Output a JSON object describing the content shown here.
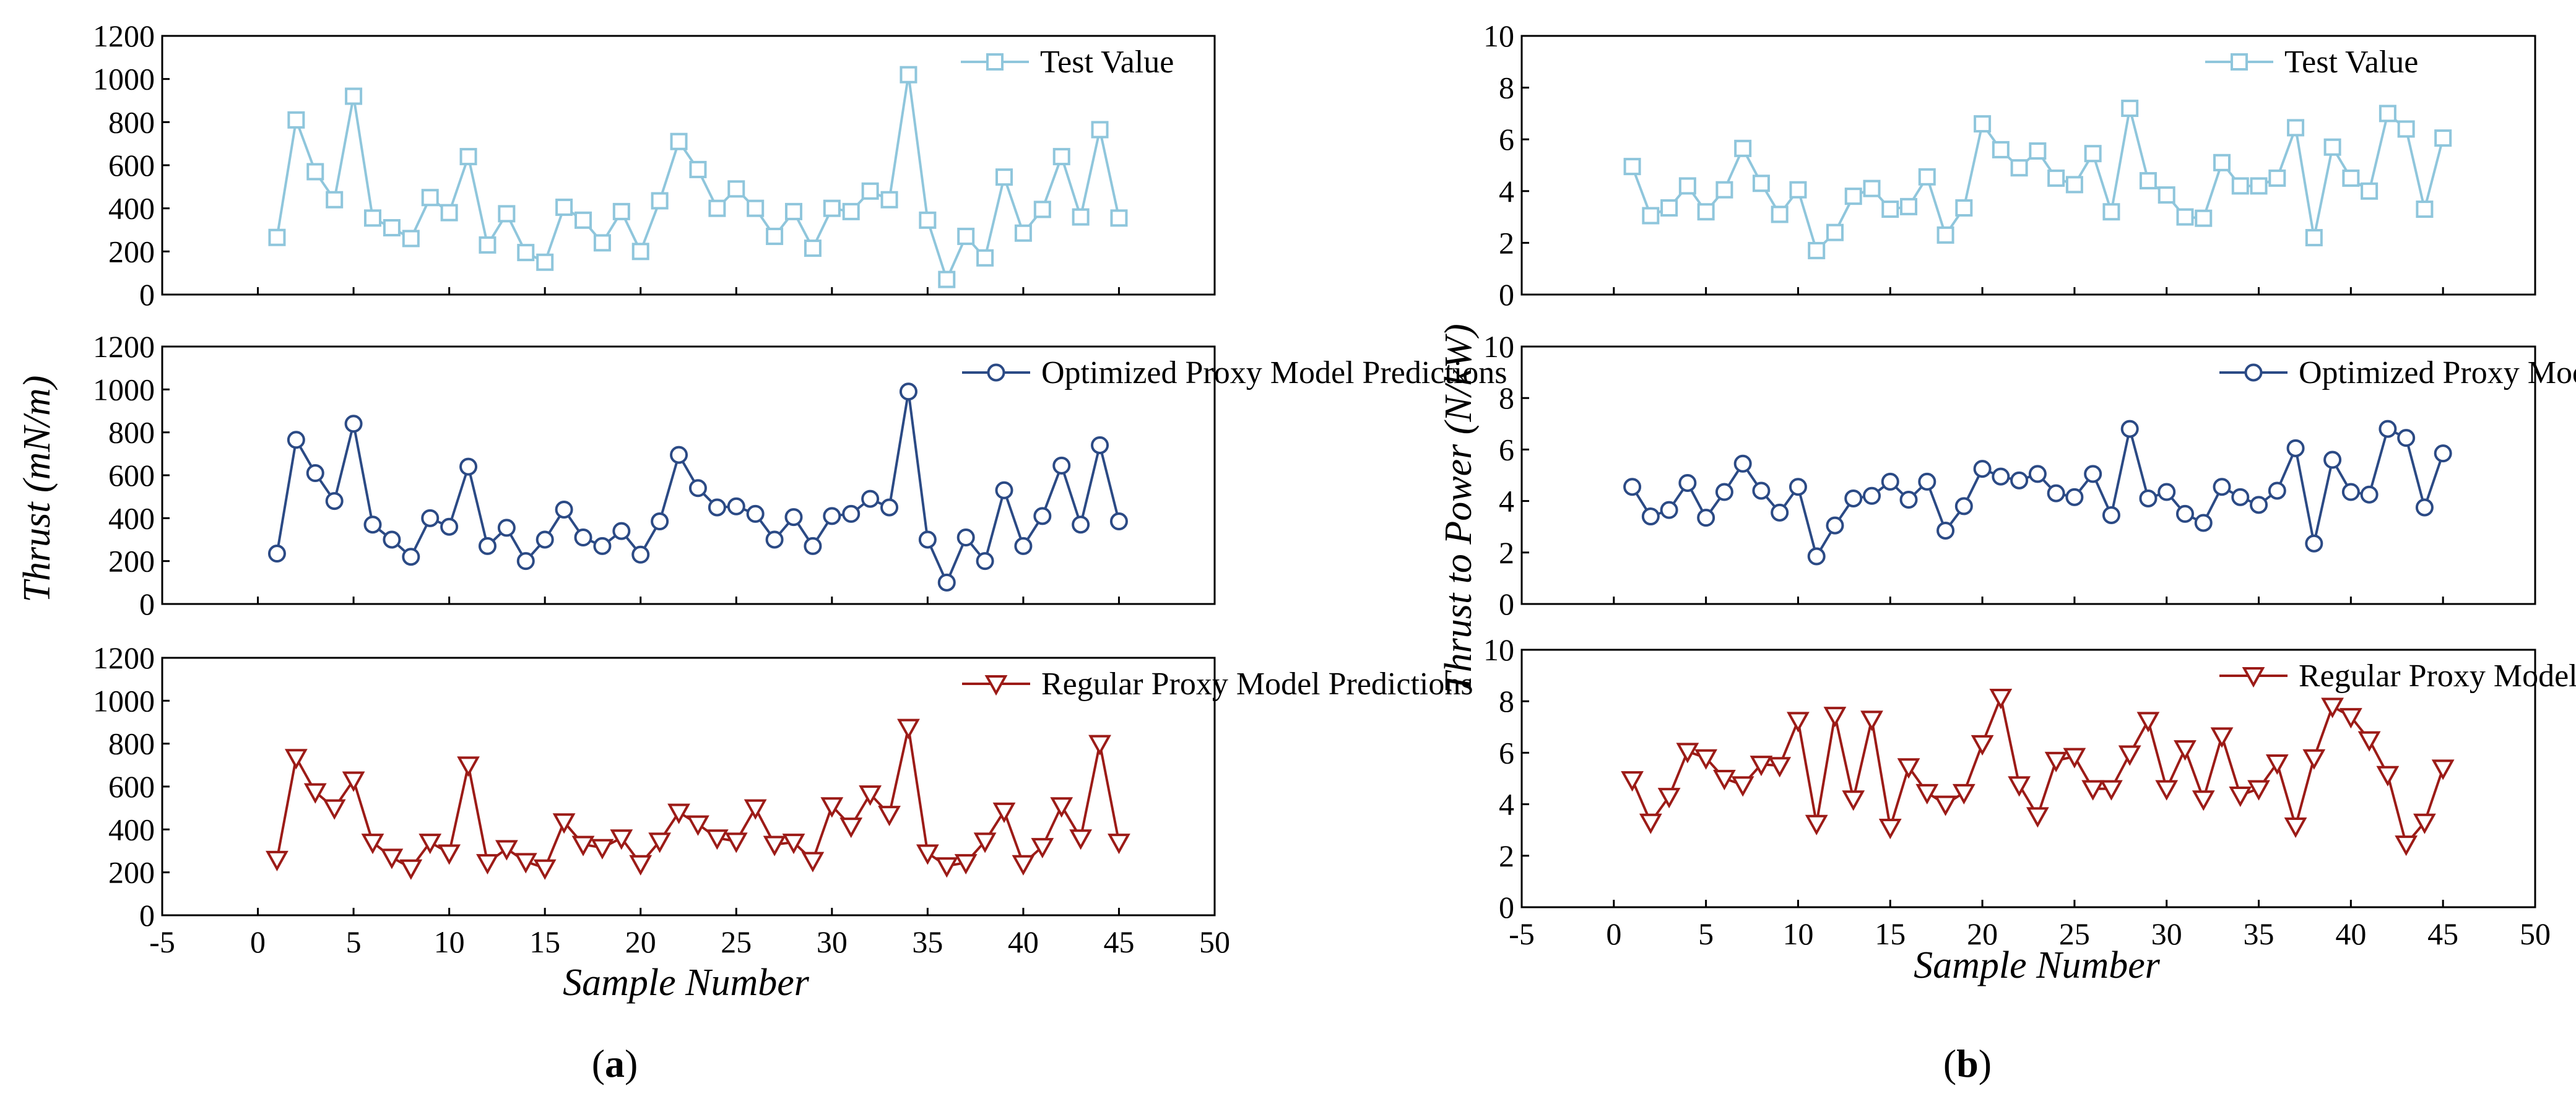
{
  "chart_data": [
    {
      "id": "a",
      "type": "line",
      "caption": {
        "open": "(",
        "letter": "a",
        "close": ")"
      },
      "xlabel": "Sample Number",
      "ylabel": "Thrust (mN/m)",
      "xlim": [
        -5,
        50
      ],
      "xticks": [
        "-5",
        "0",
        "5",
        "10",
        "15",
        "20",
        "25",
        "30",
        "35",
        "40",
        "45",
        "50"
      ],
      "ylim": [
        0,
        1200
      ],
      "yticks": [
        "0",
        "200",
        "400",
        "600",
        "800",
        "1000",
        "1200"
      ],
      "x": [
        1,
        2,
        3,
        4,
        5,
        6,
        7,
        8,
        9,
        10,
        11,
        12,
        13,
        14,
        15,
        16,
        17,
        18,
        19,
        20,
        21,
        22,
        23,
        24,
        25,
        26,
        27,
        28,
        29,
        30,
        31,
        32,
        33,
        34,
        35,
        36,
        37,
        38,
        39,
        40,
        41,
        42,
        43,
        44,
        45
      ],
      "series": [
        {
          "name": "Test Value",
          "marker": "square",
          "color": "#8fc6dc",
          "values": [
            265,
            810,
            570,
            440,
            920,
            355,
            310,
            260,
            450,
            380,
            640,
            230,
            375,
            195,
            150,
            405,
            345,
            240,
            385,
            200,
            435,
            710,
            580,
            400,
            490,
            400,
            270,
            385,
            215,
            400,
            385,
            480,
            440,
            1020,
            345,
            70,
            270,
            170,
            545,
            285,
            395,
            640,
            360,
            765,
            355
          ]
        },
        {
          "name": "Optimized Proxy Model  Predictions",
          "marker": "circle",
          "color": "#2b4a85",
          "values": [
            235,
            765,
            610,
            480,
            840,
            370,
            300,
            220,
            400,
            360,
            640,
            270,
            355,
            200,
            300,
            440,
            310,
            270,
            340,
            230,
            385,
            695,
            540,
            450,
            455,
            420,
            300,
            405,
            270,
            410,
            420,
            490,
            450,
            990,
            300,
            100,
            310,
            200,
            530,
            270,
            410,
            645,
            370,
            740,
            385
          ]
        },
        {
          "name": "Regular Proxy Model Predictions",
          "marker": "triangle-down",
          "color": "#9c1b17",
          "values": [
            260,
            735,
            575,
            500,
            630,
            340,
            270,
            220,
            340,
            290,
            700,
            245,
            310,
            250,
            220,
            435,
            330,
            315,
            360,
            240,
            345,
            480,
            425,
            360,
            345,
            500,
            330,
            340,
            255,
            510,
            415,
            565,
            470,
            875,
            290,
            230,
            245,
            345,
            485,
            240,
            320,
            510,
            360,
            800,
            340
          ]
        }
      ]
    },
    {
      "id": "b",
      "type": "line",
      "caption": {
        "open": "(",
        "letter": "b",
        "close": ")"
      },
      "xlabel": "Sample Number",
      "ylabel": "Thrust to Power (N/kW)",
      "xlim": [
        -5,
        50
      ],
      "xticks": [
        "-5",
        "0",
        "5",
        "10",
        "15",
        "20",
        "25",
        "30",
        "35",
        "40",
        "45",
        "50"
      ],
      "ylim": [
        0,
        10
      ],
      "yticks": [
        "0",
        "2",
        "4",
        "6",
        "8",
        "10"
      ],
      "x": [
        1,
        2,
        3,
        4,
        5,
        6,
        7,
        8,
        9,
        10,
        11,
        12,
        13,
        14,
        15,
        16,
        17,
        18,
        19,
        20,
        21,
        22,
        23,
        24,
        25,
        26,
        27,
        28,
        29,
        30,
        31,
        32,
        33,
        34,
        35,
        36,
        37,
        38,
        39,
        40,
        41,
        42,
        43,
        44,
        45
      ],
      "series": [
        {
          "name": "Test Value",
          "marker": "square",
          "color": "#8fc6dc",
          "values": [
            4.95,
            3.05,
            3.35,
            4.2,
            3.2,
            4.05,
            5.65,
            4.3,
            3.1,
            4.05,
            1.7,
            2.4,
            3.8,
            4.1,
            3.3,
            3.4,
            4.55,
            2.3,
            3.35,
            6.6,
            5.6,
            4.9,
            5.55,
            4.5,
            4.25,
            5.45,
            3.2,
            7.2,
            4.4,
            3.85,
            3.0,
            2.95,
            5.1,
            4.2,
            4.2,
            4.5,
            6.45,
            2.2,
            5.7,
            4.5,
            4.0,
            7.0,
            6.4,
            3.3,
            6.05
          ]
        },
        {
          "name": "Optimized Proxy Model  Predictions",
          "marker": "circle",
          "color": "#2b4a85",
          "values": [
            4.55,
            3.4,
            3.65,
            4.7,
            3.35,
            4.35,
            5.45,
            4.4,
            3.55,
            4.55,
            1.85,
            3.05,
            4.1,
            4.2,
            4.75,
            4.05,
            4.75,
            2.85,
            3.8,
            5.25,
            4.95,
            4.8,
            5.05,
            4.3,
            4.15,
            5.05,
            3.45,
            6.8,
            4.1,
            4.35,
            3.5,
            3.15,
            4.55,
            4.15,
            3.85,
            4.4,
            6.05,
            2.35,
            5.6,
            4.35,
            4.25,
            6.8,
            6.45,
            3.75,
            5.85
          ]
        },
        {
          "name": "Regular Proxy Model Predictions",
          "marker": "triangle-down",
          "color": "#9c1b17",
          "values": [
            4.95,
            3.3,
            4.3,
            6.05,
            5.8,
            5.0,
            4.75,
            5.55,
            5.5,
            7.25,
            3.25,
            7.45,
            4.2,
            7.3,
            3.1,
            5.45,
            4.45,
            4.0,
            4.45,
            6.35,
            8.15,
            4.75,
            3.55,
            5.7,
            5.85,
            4.6,
            4.6,
            5.95,
            7.25,
            4.6,
            6.15,
            4.2,
            6.65,
            4.35,
            4.6,
            5.6,
            3.15,
            5.8,
            7.8,
            7.4,
            6.5,
            5.15,
            2.45,
            3.3,
            5.4
          ]
        }
      ]
    }
  ]
}
